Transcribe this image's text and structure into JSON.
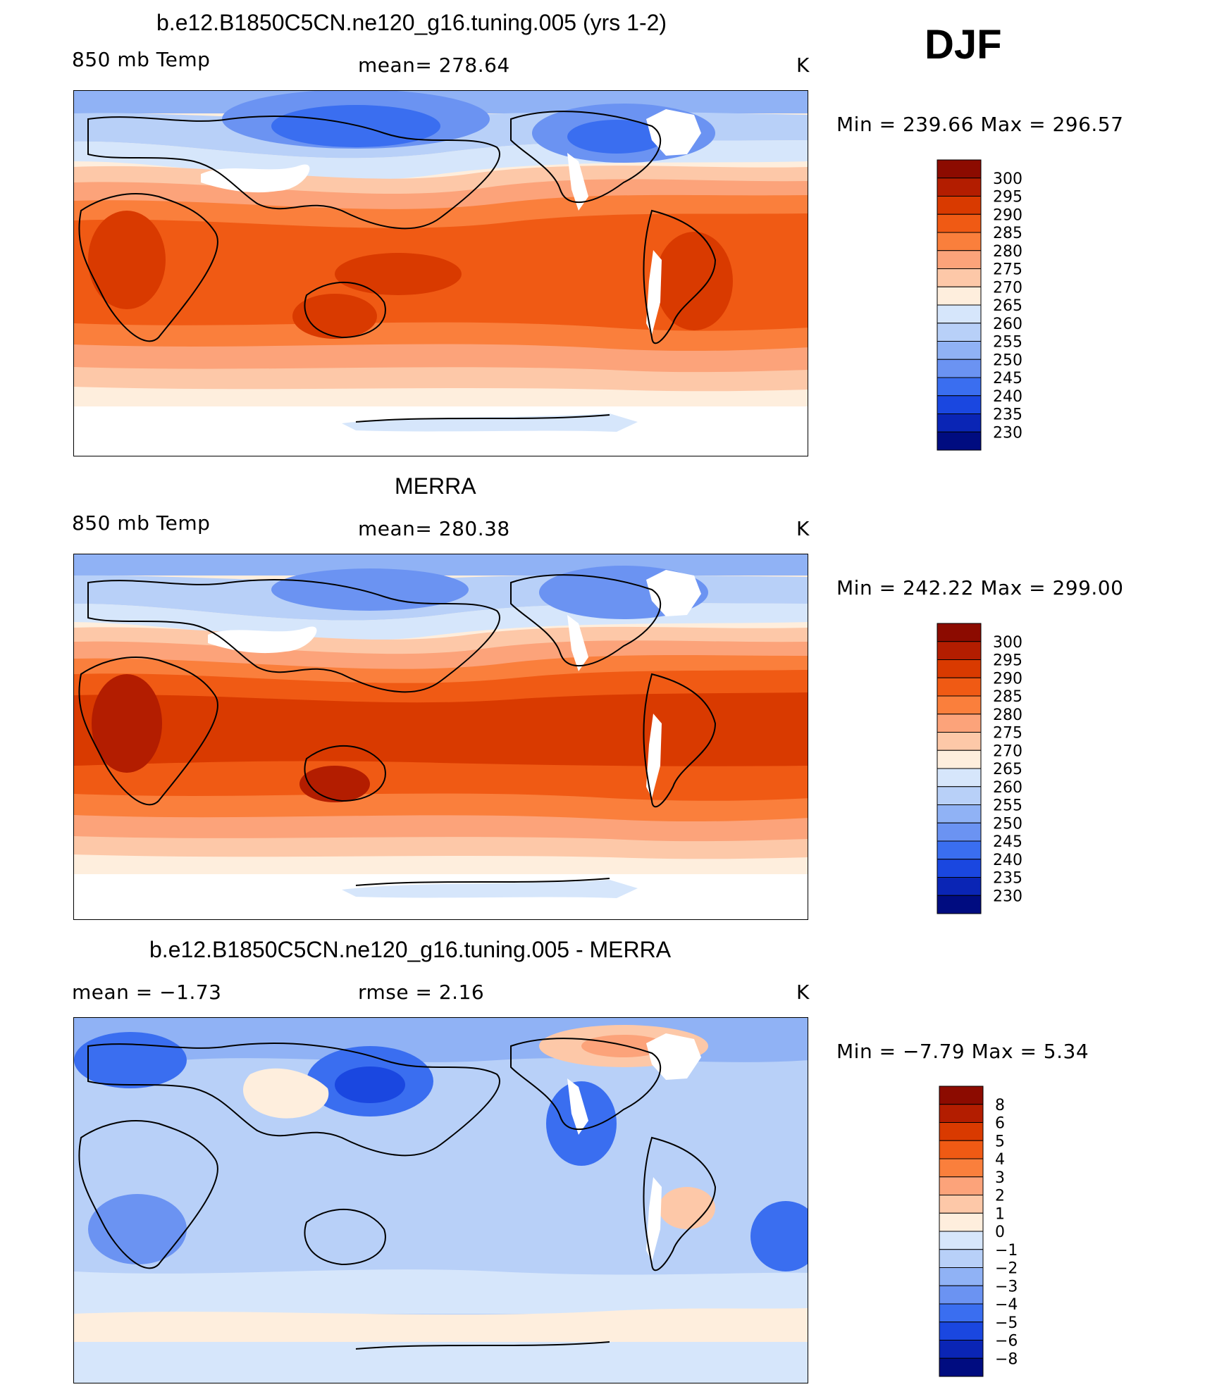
{
  "season": "DJF",
  "units_label": "K",
  "panels": [
    {
      "id": "model",
      "title": "b.e12.B1850C5CN.ne120_g16.tuning.005 (yrs 1-2)",
      "left_label": "850 mb Temp",
      "center_label": "mean=  278.64",
      "right_label": "K",
      "minmax": "Min  =  239.66  Max  =  296.57",
      "levels": [
        "300",
        "295",
        "290",
        "285",
        "280",
        "275",
        "270",
        "265",
        "260",
        "255",
        "250",
        "245",
        "240",
        "235",
        "230"
      ],
      "colors": [
        "#8c0b00",
        "#b31d00",
        "#d93a00",
        "#f05a14",
        "#fa7f3c",
        "#fca37a",
        "#fdc8a8",
        "#feeedd",
        "#d6e6fb",
        "#b8d0f8",
        "#90b2f5",
        "#6b93f2",
        "#3a6ef0",
        "#1a47e0",
        "#0a25b5",
        "#000c80"
      ]
    },
    {
      "id": "obs",
      "title": "MERRA",
      "left_label": "850 mb Temp",
      "center_label": "mean=  280.38",
      "right_label": "K",
      "minmax": "Min  =  242.22  Max  =  299.00",
      "levels": [
        "300",
        "295",
        "290",
        "285",
        "280",
        "275",
        "270",
        "265",
        "260",
        "255",
        "250",
        "245",
        "240",
        "235",
        "230"
      ],
      "colors": [
        "#8c0b00",
        "#b31d00",
        "#d93a00",
        "#f05a14",
        "#fa7f3c",
        "#fca37a",
        "#fdc8a8",
        "#feeedd",
        "#d6e6fb",
        "#b8d0f8",
        "#90b2f5",
        "#6b93f2",
        "#3a6ef0",
        "#1a47e0",
        "#0a25b5",
        "#000c80"
      ]
    },
    {
      "id": "diff",
      "title": "b.e12.B1850C5CN.ne120_g16.tuning.005 - MERRA",
      "left_label": "mean  =    −1.73",
      "center_label": "rmse  =     2.16",
      "right_label": "K",
      "minmax": "Min  =    −7.79  Max  =     5.34",
      "levels": [
        "8",
        "6",
        "5",
        "4",
        "3",
        "2",
        "1",
        "0",
        "−1",
        "−2",
        "−3",
        "−4",
        "−5",
        "−6",
        "−8"
      ],
      "colors": [
        "#8c0b00",
        "#b31d00",
        "#d93a00",
        "#f05a14",
        "#fa7f3c",
        "#fca37a",
        "#fdc8a8",
        "#feeedd",
        "#d6e6fb",
        "#b8d0f8",
        "#90b2f5",
        "#6b93f2",
        "#3a6ef0",
        "#1a47e0",
        "#0a25b5",
        "#000c80"
      ]
    }
  ]
}
